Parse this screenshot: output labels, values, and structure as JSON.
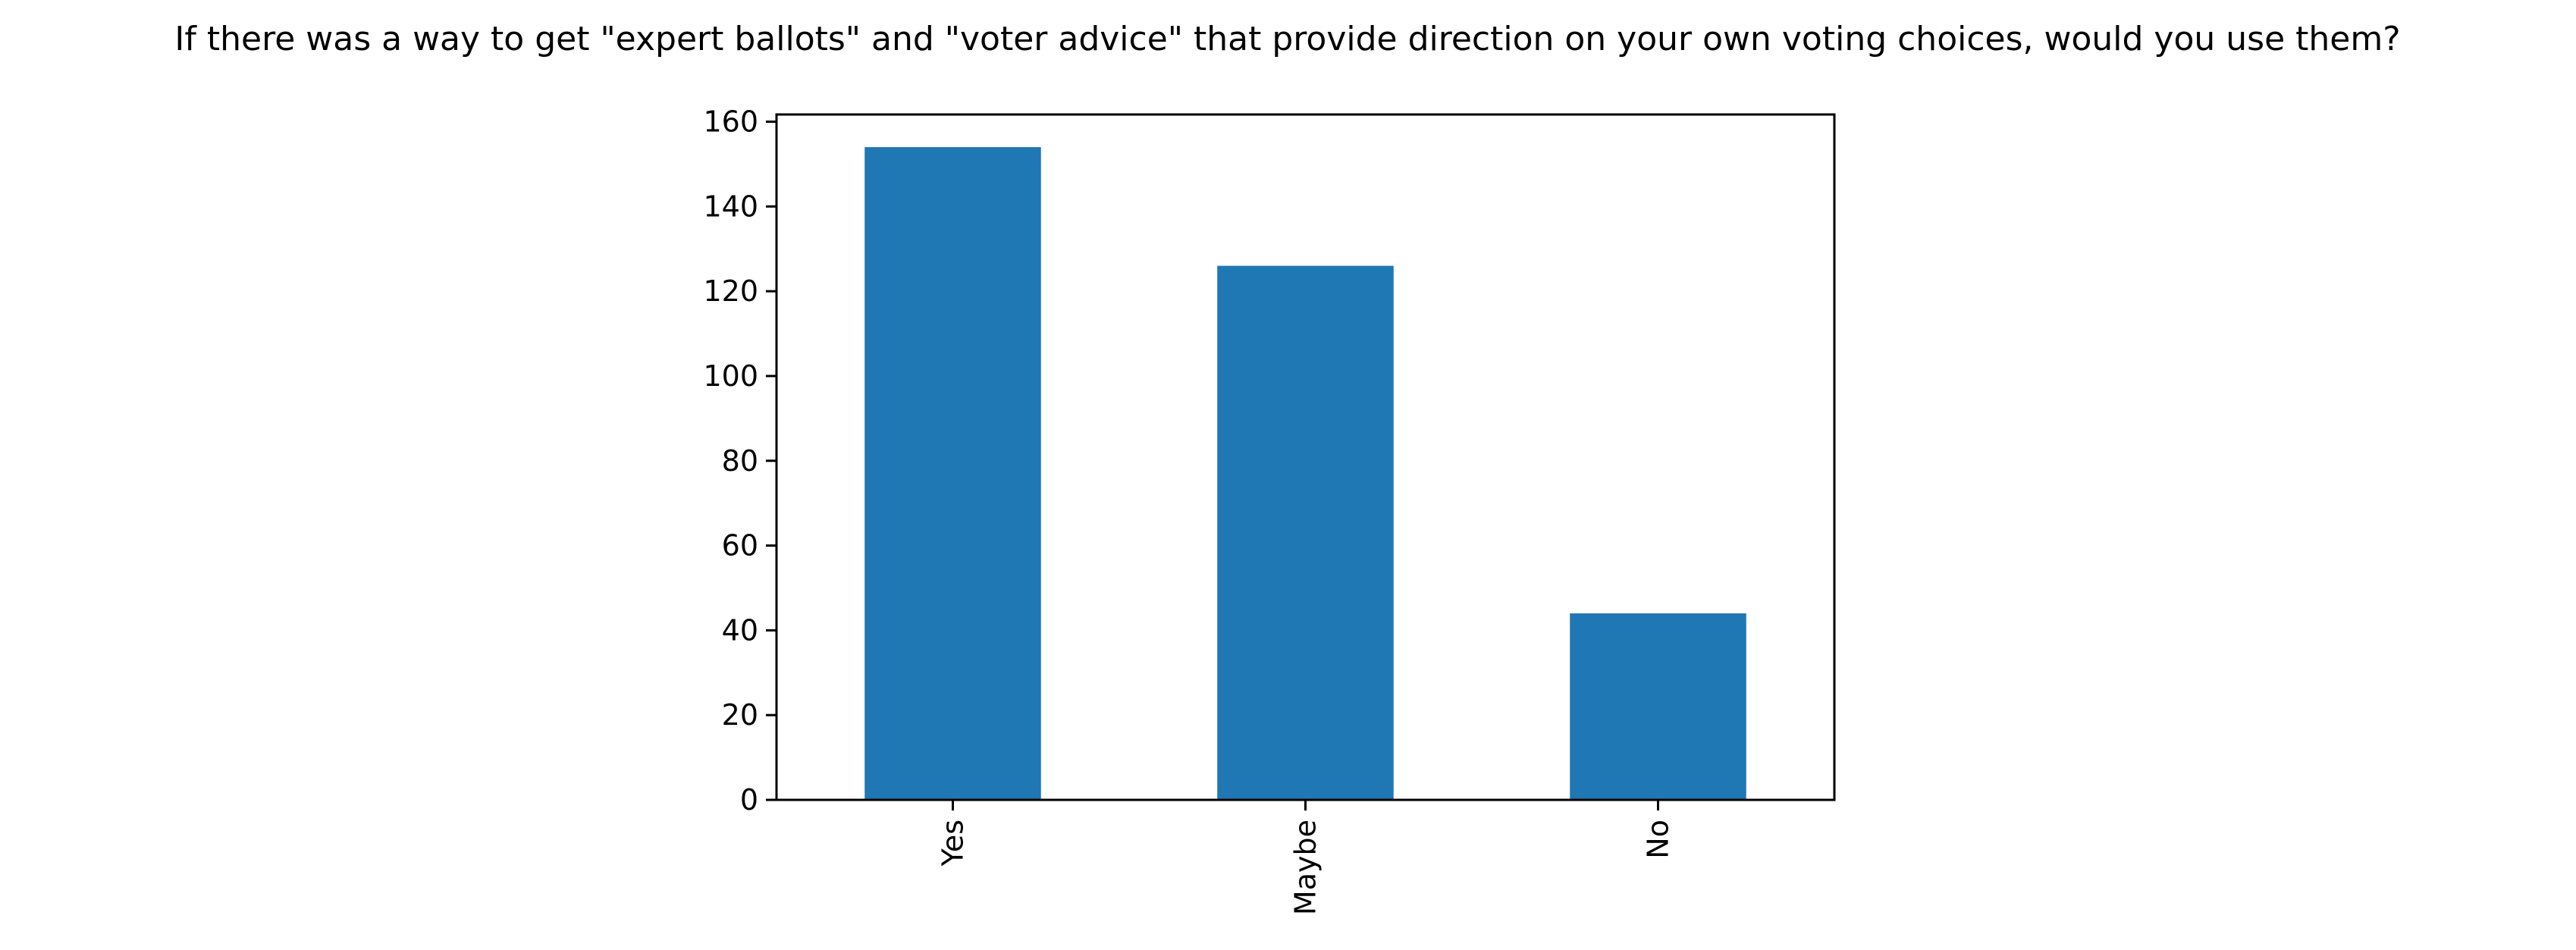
{
  "chart_data": {
    "type": "bar",
    "title": "If there was a way to get \"expert ballots\" and \"voter advice\" that provide direction on your own voting choices, would you use them?",
    "xlabel": "",
    "ylabel": "",
    "categories": [
      "Yes",
      "Maybe",
      "No"
    ],
    "values": [
      154,
      126,
      44
    ],
    "ylim": [
      0,
      161.7
    ],
    "yticks": [
      0,
      20,
      40,
      60,
      80,
      100,
      120,
      140,
      160
    ],
    "grid": false,
    "legend": "none",
    "bar_color": "#1f77b4"
  }
}
